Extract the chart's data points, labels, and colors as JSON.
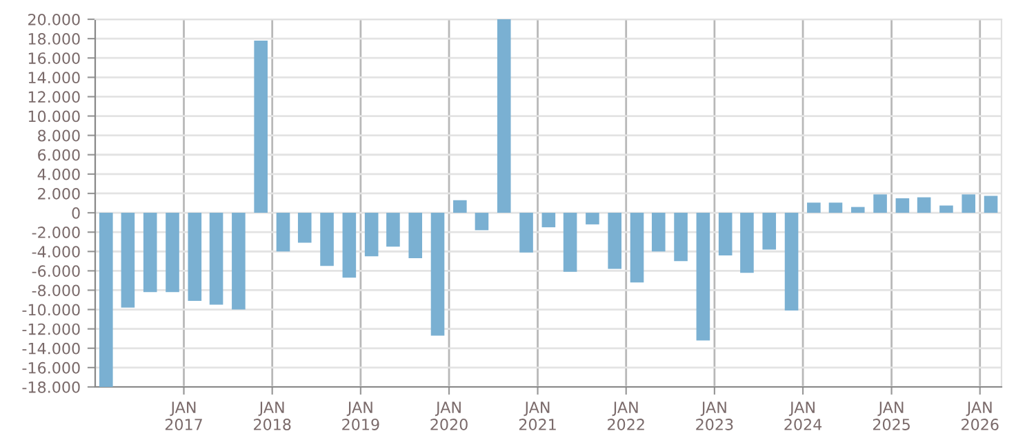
{
  "chart_data": {
    "type": "bar",
    "color": "#7ab0d2",
    "x": [
      "2016-02-15",
      "2016-05-15",
      "2016-08-15",
      "2016-11-15",
      "2017-02-15",
      "2017-05-15",
      "2017-08-15",
      "2017-11-15",
      "2018-02-15",
      "2018-05-15",
      "2018-08-15",
      "2018-11-15",
      "2019-02-15",
      "2019-05-15",
      "2019-08-15",
      "2019-11-15",
      "2020-02-15",
      "2020-05-15",
      "2020-08-15",
      "2020-11-15",
      "2021-02-15",
      "2021-05-15",
      "2021-08-15",
      "2021-11-15",
      "2022-02-15",
      "2022-05-15",
      "2022-08-15",
      "2022-11-15",
      "2023-02-15",
      "2023-05-15",
      "2023-08-15",
      "2023-11-15",
      "2024-02-15",
      "2024-05-15",
      "2024-08-15",
      "2024-11-15",
      "2025-02-15",
      "2025-05-15",
      "2025-08-15",
      "2025-11-15",
      "2026-02-15"
    ],
    "values": [
      -18000,
      -9800,
      -8200,
      -8200,
      -9100,
      -9500,
      -10000,
      17800,
      -4000,
      -3100,
      -5500,
      -6700,
      -4500,
      -3500,
      -4700,
      -12700,
      1300,
      -1800,
      20000,
      -4100,
      -1500,
      -6100,
      -1200,
      -5800,
      -7200,
      -4000,
      -5000,
      -13200,
      -4400,
      -6200,
      -3800,
      -10100,
      1050,
      1050,
      600,
      1900,
      1500,
      1600,
      750,
      1900,
      1750
    ],
    "xlim": [
      "2016-01-01",
      "2026-03-31"
    ],
    "xticks": [
      {
        "value": "2017-01-01",
        "label": "JAN\n2017"
      },
      {
        "value": "2018-01-01",
        "label": "JAN\n2018"
      },
      {
        "value": "2019-01-01",
        "label": "JAN\n2019"
      },
      {
        "value": "2020-01-01",
        "label": "JAN\n2020"
      },
      {
        "value": "2021-01-01",
        "label": "JAN\n2021"
      },
      {
        "value": "2022-01-01",
        "label": "JAN\n2022"
      },
      {
        "value": "2023-01-01",
        "label": "JAN\n2023"
      },
      {
        "value": "2024-01-01",
        "label": "JAN\n2024"
      },
      {
        "value": "2025-01-01",
        "label": "JAN\n2025"
      },
      {
        "value": "2026-01-01",
        "label": "JAN\n2026"
      }
    ],
    "ylim": [
      -18000,
      20000
    ],
    "yticks": [
      {
        "value": -18000,
        "label": "-18.000"
      },
      {
        "value": -16000,
        "label": "-16.000"
      },
      {
        "value": -14000,
        "label": "-14.000"
      },
      {
        "value": -12000,
        "label": "-12.000"
      },
      {
        "value": -10000,
        "label": "-10.000"
      },
      {
        "value": -8000,
        "label": "-8.000"
      },
      {
        "value": -6000,
        "label": "-6.000"
      },
      {
        "value": -4000,
        "label": "-4.000"
      },
      {
        "value": -2000,
        "label": "-2.000"
      },
      {
        "value": 0,
        "label": "0"
      },
      {
        "value": 2000,
        "label": "2.000"
      },
      {
        "value": 4000,
        "label": "4.000"
      },
      {
        "value": 6000,
        "label": "6.000"
      },
      {
        "value": 8000,
        "label": "8.000"
      },
      {
        "value": 10000,
        "label": "10.000"
      },
      {
        "value": 12000,
        "label": "12.000"
      },
      {
        "value": 14000,
        "label": "14.000"
      },
      {
        "value": 16000,
        "label": "16.000"
      },
      {
        "value": 18000,
        "label": "18.000"
      },
      {
        "value": 20000,
        "label": "20.000"
      }
    ],
    "grid": true
  }
}
